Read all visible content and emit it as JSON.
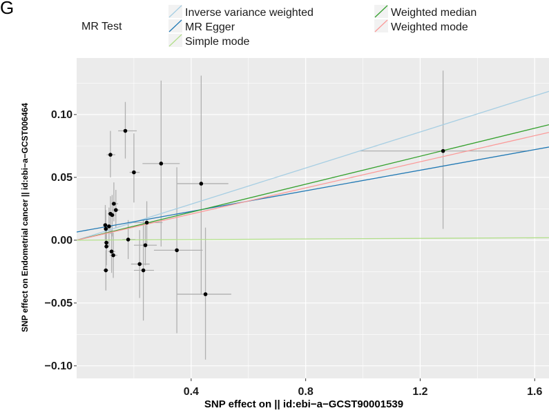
{
  "panel_letter": "G",
  "chart_data": {
    "type": "scatter",
    "xlabel": "SNP effect on  || id:ebi−a−GCST90001539",
    "ylabel": "SNP effect on Endometrial cancer || id:ebi−a−GCST006464",
    "xlim": [
      0.0,
      1.65
    ],
    "ylim": [
      -0.11,
      0.145
    ],
    "x_ticks": [
      0.4,
      0.8,
      1.2,
      1.6
    ],
    "x_tick_labels": [
      "0.4",
      "0.8",
      "1.2",
      "1.6"
    ],
    "y_ticks": [
      -0.1,
      -0.05,
      0.0,
      0.05,
      0.1
    ],
    "y_tick_labels": [
      "−0.10",
      "−0.05",
      "0.00",
      "0.05",
      "0.10"
    ],
    "grid": true,
    "legend": {
      "title": "MR Test",
      "position": "top",
      "entries": [
        {
          "name": "Inverse variance weighted",
          "color": "#a6cee3"
        },
        {
          "name": "Weighted median",
          "color": "#33a02c"
        },
        {
          "name": "MR Egger",
          "color": "#1f78b4"
        },
        {
          "name": "Weighted mode",
          "color": "#fb9a99"
        },
        {
          "name": "Simple mode",
          "color": "#b2df8a"
        }
      ]
    },
    "lines": [
      {
        "name": "Inverse variance weighted",
        "intercept": 0.0,
        "slope": 0.0718,
        "color": "#a6cee3"
      },
      {
        "name": "MR Egger",
        "intercept": 0.0065,
        "slope": 0.041,
        "color": "#1f78b4"
      },
      {
        "name": "Weighted median",
        "intercept": 0.0,
        "slope": 0.0557,
        "color": "#33a02c"
      },
      {
        "name": "Weighted mode",
        "intercept": 0.0,
        "slope": 0.052,
        "color": "#fb9a99"
      },
      {
        "name": "Simple mode",
        "intercept": 0.0,
        "slope": 0.0012,
        "color": "#b2df8a"
      }
    ],
    "points": [
      {
        "x": 0.17,
        "y": 0.087,
        "xmin": 0.145,
        "xmax": 0.21,
        "ymin": 0.065,
        "ymax": 0.11
      },
      {
        "x": 0.118,
        "y": 0.068,
        "xmin": 0.105,
        "xmax": 0.135,
        "ymin": 0.05,
        "ymax": 0.087
      },
      {
        "x": 0.295,
        "y": 0.061,
        "xmin": 0.23,
        "xmax": 0.36,
        "ymin": -0.005,
        "ymax": 0.127
      },
      {
        "x": 0.2,
        "y": 0.054,
        "xmin": 0.185,
        "xmax": 0.22,
        "ymin": 0.03,
        "ymax": 0.085
      },
      {
        "x": 0.435,
        "y": 0.045,
        "xmin": 0.35,
        "xmax": 0.53,
        "ymin": -0.043,
        "ymax": 0.131
      },
      {
        "x": 1.28,
        "y": 0.071,
        "xmin": 0.99,
        "xmax": 1.58,
        "ymin": 0.009,
        "ymax": 0.135
      },
      {
        "x": 0.13,
        "y": 0.029,
        "xmin": 0.12,
        "xmax": 0.145,
        "ymin": 0.015,
        "ymax": 0.046
      },
      {
        "x": 0.137,
        "y": 0.024,
        "xmin": 0.125,
        "xmax": 0.15,
        "ymin": 0.01,
        "ymax": 0.04
      },
      {
        "x": 0.118,
        "y": 0.021,
        "xmin": 0.108,
        "xmax": 0.13,
        "ymin": 0.005,
        "ymax": 0.035
      },
      {
        "x": 0.124,
        "y": 0.02,
        "xmin": 0.112,
        "xmax": 0.138,
        "ymin": 0.003,
        "ymax": 0.036
      },
      {
        "x": 0.245,
        "y": 0.014,
        "xmin": 0.19,
        "xmax": 0.3,
        "ymin": -0.005,
        "ymax": 0.031
      },
      {
        "x": 0.1,
        "y": 0.012,
        "xmin": 0.092,
        "xmax": 0.112,
        "ymin": -0.002,
        "ymax": 0.028
      },
      {
        "x": 0.113,
        "y": 0.011,
        "xmin": 0.1,
        "xmax": 0.125,
        "ymin": -0.005,
        "ymax": 0.026
      },
      {
        "x": 0.102,
        "y": 0.009,
        "xmin": 0.094,
        "xmax": 0.112,
        "ymin": -0.007,
        "ymax": 0.024
      },
      {
        "x": 0.18,
        "y": 0.0005,
        "xmin": 0.16,
        "xmax": 0.205,
        "ymin": -0.015,
        "ymax": 0.016
      },
      {
        "x": 0.104,
        "y": -0.002,
        "xmin": 0.095,
        "xmax": 0.113,
        "ymin": -0.016,
        "ymax": 0.012
      },
      {
        "x": 0.104,
        "y": -0.005,
        "xmin": 0.096,
        "xmax": 0.113,
        "ymin": -0.02,
        "ymax": 0.01
      },
      {
        "x": 0.24,
        "y": -0.004,
        "xmin": 0.2,
        "xmax": 0.28,
        "ymin": -0.02,
        "ymax": 0.012
      },
      {
        "x": 0.122,
        "y": -0.009,
        "xmin": 0.11,
        "xmax": 0.135,
        "ymin": -0.026,
        "ymax": 0.008
      },
      {
        "x": 0.128,
        "y": -0.012,
        "xmin": 0.116,
        "xmax": 0.142,
        "ymin": -0.03,
        "ymax": 0.006
      },
      {
        "x": 0.35,
        "y": -0.008,
        "xmin": 0.27,
        "xmax": 0.44,
        "ymin": -0.074,
        "ymax": 0.058
      },
      {
        "x": 0.22,
        "y": -0.019,
        "xmin": 0.19,
        "xmax": 0.255,
        "ymin": -0.046,
        "ymax": 0.008
      },
      {
        "x": 0.102,
        "y": -0.024,
        "xmin": 0.093,
        "xmax": 0.112,
        "ymin": -0.04,
        "ymax": -0.008
      },
      {
        "x": 0.233,
        "y": -0.024,
        "xmin": 0.2,
        "xmax": 0.27,
        "ymin": -0.064,
        "ymax": 0.016
      },
      {
        "x": 0.45,
        "y": -0.043,
        "xmin": 0.35,
        "xmax": 0.54,
        "ymin": -0.095,
        "ymax": 0.01
      }
    ]
  }
}
